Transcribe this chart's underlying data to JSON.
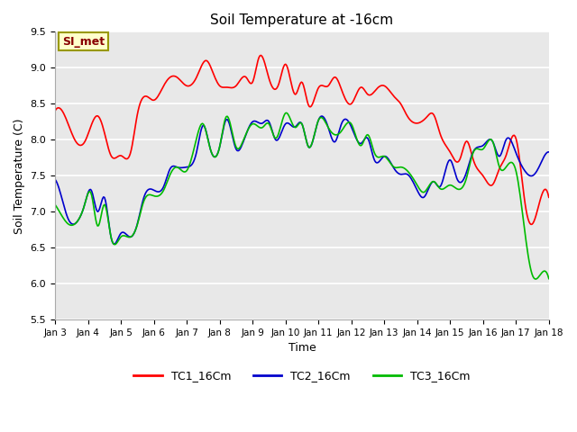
{
  "title": "Soil Temperature at -16cm",
  "xlabel": "Time",
  "ylabel": "Soil Temperature (C)",
  "ylim": [
    5.5,
    9.5
  ],
  "xlim": [
    0,
    15
  ],
  "yticks": [
    5.5,
    6.0,
    6.5,
    7.0,
    7.5,
    8.0,
    8.5,
    9.0,
    9.5
  ],
  "xtick_labels": [
    "Jan 3",
    "Jan 4",
    "Jan 5",
    "Jan 6",
    "Jan 7",
    "Jan 8",
    "Jan 9",
    "Jan 10",
    "Jan 11",
    "Jan 12",
    "Jan 13",
    "Jan 14",
    "Jan 15",
    "Jan 16",
    "Jan 17",
    "Jan 18"
  ],
  "bg_color": "#e8e8e8",
  "grid_color": "#ffffff",
  "line_colors": [
    "#ff0000",
    "#0000cc",
    "#00bb00"
  ],
  "line_labels": [
    "TC1_16Cm",
    "TC2_16Cm",
    "TC3_16Cm"
  ],
  "annotation_text": "SI_met",
  "annotation_bg": "#ffffcc",
  "annotation_border": "#999900",
  "TC1_kx": [
    0.0,
    0.3,
    0.6,
    0.9,
    1.1,
    1.3,
    1.5,
    1.7,
    2.0,
    2.3,
    2.5,
    2.8,
    3.0,
    3.3,
    3.5,
    3.7,
    4.0,
    4.3,
    4.6,
    4.8,
    5.0,
    5.2,
    5.5,
    5.8,
    6.0,
    6.2,
    6.5,
    6.8,
    7.0,
    7.3,
    7.5,
    7.7,
    8.0,
    8.3,
    8.5,
    8.7,
    9.0,
    9.3,
    9.5,
    9.8,
    10.0,
    10.3,
    10.5,
    10.7,
    11.0,
    11.3,
    11.5,
    11.7,
    12.0,
    12.3,
    12.5,
    12.7,
    13.0,
    13.3,
    13.5,
    13.7,
    14.0,
    14.3,
    14.5,
    14.7,
    15.0
  ],
  "TC1_ky": [
    8.4,
    8.33,
    8.0,
    7.97,
    8.2,
    8.33,
    8.1,
    7.78,
    7.78,
    7.83,
    8.35,
    8.6,
    8.55,
    8.75,
    8.87,
    8.87,
    8.75,
    8.87,
    9.1,
    8.93,
    8.75,
    8.73,
    8.75,
    8.87,
    8.8,
    9.15,
    8.85,
    8.78,
    9.05,
    8.63,
    8.8,
    8.48,
    8.72,
    8.75,
    8.87,
    8.7,
    8.5,
    8.73,
    8.63,
    8.72,
    8.75,
    8.6,
    8.5,
    8.33,
    8.23,
    8.32,
    8.35,
    8.08,
    7.83,
    7.73,
    7.98,
    7.73,
    7.5,
    7.38,
    7.6,
    7.78,
    8.02,
    7.05,
    6.83,
    7.1,
    7.2
  ],
  "TC2_kx": [
    0.0,
    0.2,
    0.4,
    0.7,
    0.9,
    1.1,
    1.3,
    1.5,
    1.7,
    2.0,
    2.3,
    2.5,
    2.7,
    3.0,
    3.3,
    3.5,
    3.7,
    4.0,
    4.3,
    4.5,
    4.7,
    5.0,
    5.2,
    5.5,
    5.7,
    6.0,
    6.3,
    6.5,
    6.7,
    7.0,
    7.3,
    7.5,
    7.7,
    8.0,
    8.3,
    8.5,
    8.7,
    9.0,
    9.3,
    9.5,
    9.7,
    10.0,
    10.3,
    10.5,
    10.7,
    11.0,
    11.2,
    11.5,
    11.7,
    12.0,
    12.2,
    12.5,
    12.7,
    13.0,
    13.3,
    13.5,
    13.7,
    14.0,
    14.3,
    14.5,
    14.7,
    14.9,
    15.0
  ],
  "TC2_ky": [
    7.45,
    7.2,
    6.9,
    6.88,
    7.1,
    7.3,
    7.0,
    7.2,
    6.65,
    6.7,
    6.65,
    6.83,
    7.2,
    7.3,
    7.35,
    7.6,
    7.62,
    7.62,
    7.83,
    8.2,
    7.9,
    7.9,
    8.28,
    7.87,
    7.95,
    8.25,
    8.23,
    8.25,
    8.0,
    8.22,
    8.18,
    8.22,
    7.9,
    8.27,
    8.17,
    7.97,
    8.22,
    8.18,
    7.95,
    8.02,
    7.72,
    7.77,
    7.6,
    7.52,
    7.52,
    7.3,
    7.2,
    7.42,
    7.35,
    7.72,
    7.47,
    7.55,
    7.83,
    7.92,
    7.97,
    7.77,
    8.0,
    7.82,
    7.55,
    7.5,
    7.62,
    7.8,
    7.83
  ],
  "TC3_kx": [
    0.0,
    0.2,
    0.4,
    0.7,
    0.9,
    1.1,
    1.3,
    1.5,
    1.7,
    2.0,
    2.3,
    2.5,
    2.7,
    3.0,
    3.3,
    3.5,
    3.7,
    4.0,
    4.3,
    4.5,
    4.7,
    5.0,
    5.2,
    5.5,
    5.7,
    6.0,
    6.3,
    6.5,
    6.7,
    7.0,
    7.3,
    7.5,
    7.7,
    8.0,
    8.3,
    8.5,
    8.7,
    9.0,
    9.3,
    9.5,
    9.7,
    10.0,
    10.3,
    10.5,
    10.7,
    11.0,
    11.2,
    11.5,
    11.7,
    12.0,
    12.2,
    12.5,
    12.7,
    13.0,
    13.3,
    13.5,
    13.7,
    14.0,
    14.3,
    14.5,
    14.7,
    15.0
  ],
  "TC3_ky": [
    7.1,
    6.95,
    6.83,
    6.88,
    7.1,
    7.25,
    6.8,
    7.1,
    6.65,
    6.65,
    6.65,
    6.82,
    7.15,
    7.22,
    7.3,
    7.52,
    7.62,
    7.57,
    8.02,
    8.22,
    7.9,
    7.9,
    8.32,
    7.9,
    7.97,
    8.22,
    8.17,
    8.22,
    8.02,
    8.37,
    8.17,
    8.22,
    7.9,
    8.27,
    8.17,
    8.07,
    8.12,
    8.22,
    7.92,
    8.07,
    7.82,
    7.77,
    7.62,
    7.62,
    7.57,
    7.37,
    7.27,
    7.42,
    7.32,
    7.37,
    7.32,
    7.47,
    7.82,
    7.87,
    7.97,
    7.62,
    7.62,
    7.57,
    6.62,
    6.12,
    6.1,
    6.07
  ]
}
